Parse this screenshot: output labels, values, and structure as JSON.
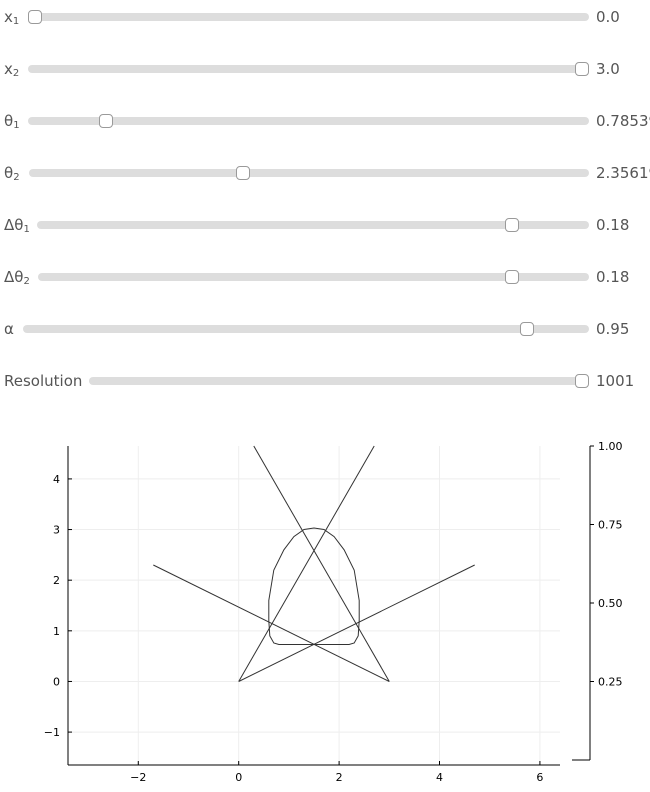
{
  "sliders": [
    {
      "name": "x",
      "sub": "1",
      "value": "0.0",
      "fraction": 0.0
    },
    {
      "name": "x",
      "sub": "2",
      "value": "3.0",
      "fraction": 1.0
    },
    {
      "name": "θ",
      "sub": "1",
      "value": "0.785398",
      "fraction": 0.13
    },
    {
      "name": "θ",
      "sub": "2",
      "value": "2.356194",
      "fraction": 0.38
    },
    {
      "name": "Δθ",
      "sub": "1",
      "value": "0.18",
      "fraction": 0.87
    },
    {
      "name": "Δθ",
      "sub": "2",
      "value": "0.18",
      "fraction": 0.87
    },
    {
      "name": "α",
      "sub": "",
      "value": "0.95",
      "fraction": 0.9
    },
    {
      "name": "Resolution",
      "sub": "",
      "value": "1001",
      "fraction": 1.0
    }
  ],
  "chart_data": {
    "type": "line",
    "xlim": [
      -3.4,
      6.4
    ],
    "ylim": [
      -1.65,
      4.65
    ],
    "xticks": [
      "−2",
      "0",
      "2",
      "4",
      "6"
    ],
    "yticks": [
      "−1",
      "0",
      "1",
      "2",
      "3",
      "4"
    ],
    "y2ticks": [
      "0.25",
      "0.50",
      "0.75",
      "1.00"
    ],
    "grid": true,
    "colors": {
      "line": "#333333",
      "grid": "#eeeeee",
      "axis": "#000000"
    },
    "series": [
      {
        "x": [
          0,
          2.7
        ],
        "y": [
          0,
          4.65
        ]
      },
      {
        "x": [
          3,
          0.3
        ],
        "y": [
          0,
          4.65
        ]
      },
      {
        "x": [
          0,
          4.7
        ],
        "y": [
          0,
          2.3
        ]
      },
      {
        "x": [
          3,
          -1.7
        ],
        "y": [
          0,
          2.3
        ]
      },
      {
        "x": [
          0.6,
          0.6,
          0.7,
          0.9,
          1.1,
          1.3,
          1.5,
          1.7,
          1.9,
          2.1,
          2.3,
          2.4,
          2.4,
          2.38,
          2.3,
          2.2,
          1.5,
          0.8,
          0.7,
          0.62,
          0.6
        ],
        "y": [
          1.2,
          1.6,
          2.2,
          2.6,
          2.86,
          3.0,
          3.03,
          3.0,
          2.86,
          2.6,
          2.2,
          1.6,
          1.2,
          0.9,
          0.76,
          0.73,
          0.73,
          0.73,
          0.76,
          0.9,
          1.2
        ]
      }
    ]
  }
}
